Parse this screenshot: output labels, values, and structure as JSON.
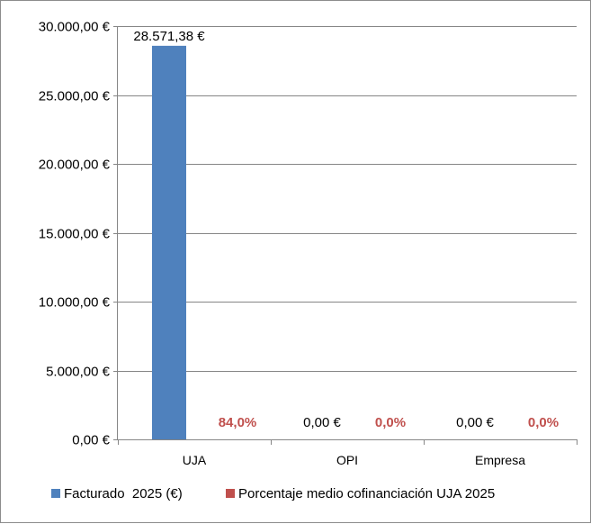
{
  "chart_data": {
    "type": "bar",
    "categories": [
      "UJA",
      "OPI",
      "Empresa"
    ],
    "series": [
      {
        "name": "Facturado  2025 (€)",
        "values": [
          28571.38,
          0,
          0
        ],
        "labels": [
          "28.571,38 €",
          "0,00 €",
          "0,00 €"
        ],
        "color": "#4f81bd"
      },
      {
        "name": "Porcentaje medio cofinanciación UJA 2025",
        "values": [
          84.0,
          0.0,
          0.0
        ],
        "labels": [
          "84,0%",
          "0,0%",
          "0,0%"
        ],
        "color": "#c0504d"
      }
    ],
    "ylim": [
      0,
      30000
    ],
    "yticks": [
      0,
      5000,
      10000,
      15000,
      20000,
      25000,
      30000
    ],
    "ytick_labels": [
      "0,00 €",
      "5.000,00 €",
      "10.000,00 €",
      "15.000,00 €",
      "20.000,00 €",
      "25.000,00 €",
      "30.000,00 €"
    ],
    "grid": true,
    "legend": "bottom"
  }
}
